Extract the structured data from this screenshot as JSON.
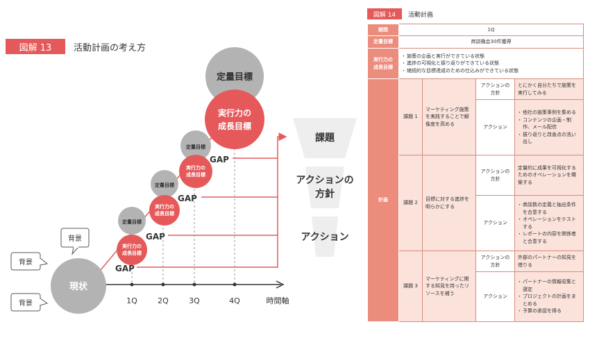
{
  "fig13": {
    "badge": "図解 13",
    "title": "活動計画の考え方",
    "current": "現状",
    "background_label": "背景",
    "quant_goal": "定量目標",
    "growth_goal_line1": "実行力の",
    "growth_goal_line2": "成長目標",
    "gap": "GAP",
    "ticks": [
      "1Q",
      "2Q",
      "3Q",
      "4Q"
    ],
    "axis_label": "時間軸",
    "funnel": [
      "課題",
      "アクションの\n方針",
      "アクション"
    ]
  },
  "fig14": {
    "badge": "図解 14",
    "title": "活動計画",
    "rows": {
      "period": {
        "label": "期間",
        "value": "1Q"
      },
      "quant": {
        "label": "定量目標",
        "value": "商談機会30件獲得"
      },
      "growth": {
        "label": "実行力の\n成長目標",
        "items": [
          "施策の企画と実行ができている状態",
          "進捗の可視化と振り返りができている状態",
          "継続的な目標達成のための仕込みができている状態"
        ]
      }
    },
    "plan_label": "計画",
    "issues": [
      {
        "name": "課題 1",
        "desc": "マーケティング施策を実践することで解像度を高める",
        "policy_label": "アクションの方針",
        "policy": "とにかく自分たちで施策を実行してみる",
        "action_label": "アクション",
        "actions": [
          "他社の施策事例を集める",
          "コンテンツの企画・制作、メール配信",
          "振り返りと改善点の洗い出し"
        ]
      },
      {
        "name": "課題 2",
        "desc": "目標に対する進捗を明らかにする",
        "policy_label": "アクションの方針",
        "policy": "定量的に成果を可視化するためのオペレーションを構築する",
        "action_label": "アクション",
        "actions": [
          "商談数の定義と抽出条件を合意する",
          "オペレーションをテストする",
          "レポートの内容を関係者と合意する"
        ]
      },
      {
        "name": "課題 3",
        "desc": "マーケティングに関する知見を持ったリソースを補う",
        "policy_label": "アクションの方針",
        "policy": "外部のパートナーの知見を借りる",
        "action_label": "アクション",
        "actions": [
          "パートナーの情報収集と選定",
          "プロジェクトの計画をまとめる",
          "予算の承認を得る"
        ]
      }
    ]
  },
  "colors": {
    "accent": "#e5595a",
    "grey": "#b3b3b3",
    "header_pink": "#ec8c7c",
    "light_pink": "#fbe3dc"
  }
}
